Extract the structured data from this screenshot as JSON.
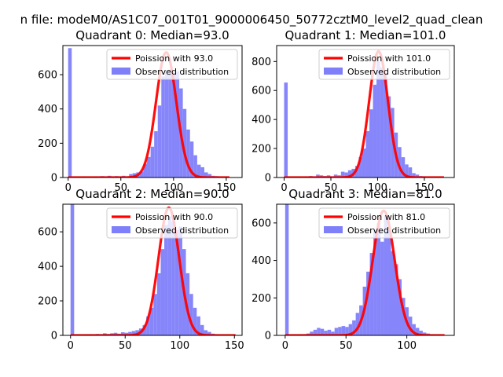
{
  "figure": {
    "suptitle": "n file: modeM0/AS1C07_001T01_9000006450_50772cztM0_level2_quad_clean"
  },
  "colors": {
    "poisson": "#ff0000",
    "histogram": "#7f7ffa",
    "axes": "#000000",
    "background": "#ffffff"
  },
  "chart_data": [
    {
      "type": "bar",
      "title": "Quadrant 0: Median=93.0",
      "median": 93.0,
      "xlim": [
        -5,
        165
      ],
      "ylim": [
        0,
        770
      ],
      "xticks": [
        0,
        50,
        100,
        150
      ],
      "yticks": [
        0,
        200,
        400,
        600
      ],
      "legend": {
        "location": "top-right",
        "line_label": "Poission with 93.0",
        "bar_label": "Observed distribution"
      },
      "hist": {
        "bin_width": 3.4,
        "x": [
          0,
          3.4,
          6.8,
          10.2,
          13.6,
          17,
          20.4,
          23.8,
          27.2,
          30.6,
          34,
          37.4,
          40.8,
          44.2,
          47.6,
          51,
          54.4,
          57.8,
          61.2,
          64.6,
          68,
          71.4,
          74.8,
          78.2,
          81.6,
          85,
          88.4,
          91.8,
          95.2,
          98.6,
          102,
          105.4,
          108.8,
          112.2,
          115.6,
          119,
          122.4,
          125.8,
          129.2,
          132.6,
          136,
          139.4,
          142.8,
          146.2,
          149.6,
          153
        ],
        "y": [
          755,
          0,
          0,
          0,
          5,
          0,
          0,
          5,
          0,
          8,
          0,
          10,
          5,
          8,
          0,
          10,
          5,
          20,
          25,
          30,
          35,
          80,
          120,
          180,
          270,
          420,
          590,
          620,
          630,
          600,
          620,
          520,
          400,
          280,
          210,
          130,
          75,
          60,
          30,
          20,
          10,
          8,
          5,
          3,
          2,
          1
        ]
      },
      "poisson": {
        "mean": 93.0,
        "peak": 730,
        "x_range": [
          0,
          153
        ]
      }
    },
    {
      "type": "bar",
      "title": "Quadrant 1: Median=101.0",
      "median": 101.0,
      "xlim": [
        -8,
        182
      ],
      "ylim": [
        0,
        910
      ],
      "xticks": [
        0,
        50,
        100,
        150
      ],
      "yticks": [
        0,
        200,
        400,
        600,
        800
      ],
      "legend": {
        "location": "top-right",
        "line_label": "Poission with 101.0",
        "bar_label": "Observed distribution"
      },
      "hist": {
        "bin_width": 3.8,
        "x": [
          0,
          3.8,
          7.6,
          11.4,
          15.2,
          19,
          22.8,
          26.6,
          30.4,
          34.2,
          38,
          41.8,
          45.6,
          49.4,
          53.2,
          57,
          60.8,
          64.6,
          68.4,
          72.2,
          76,
          79.8,
          83.6,
          87.4,
          91.2,
          95,
          98.8,
          102.6,
          106.4,
          110.2,
          114,
          117.8,
          121.6,
          125.4,
          129.2,
          133,
          136.8,
          140.6,
          144.4,
          148.2,
          152,
          155.8,
          159.6,
          163.4,
          167.2,
          171
        ],
        "y": [
          655,
          0,
          0,
          0,
          5,
          0,
          5,
          10,
          5,
          20,
          15,
          10,
          15,
          8,
          20,
          15,
          40,
          35,
          50,
          60,
          80,
          140,
          200,
          320,
          470,
          640,
          800,
          760,
          720,
          560,
          480,
          310,
          210,
          140,
          90,
          70,
          30,
          20,
          10,
          8,
          5,
          3,
          2,
          1,
          1,
          0
        ]
      },
      "poisson": {
        "mean": 101.0,
        "peak": 870,
        "x_range": [
          0,
          171
        ]
      }
    },
    {
      "type": "bar",
      "title": "Quadrant 2: Median=90.0",
      "median": 90.0,
      "xlim": [
        -7,
        157
      ],
      "ylim": [
        0,
        760
      ],
      "xticks": [
        0,
        50,
        100,
        150
      ],
      "yticks": [
        0,
        200,
        400,
        600
      ],
      "legend": {
        "location": "top-right",
        "line_label": "Poission with 90.0",
        "bar_label": "Observed distribution"
      },
      "hist": {
        "bin_width": 3.3,
        "x": [
          0,
          3.3,
          6.6,
          9.9,
          13.2,
          16.5,
          19.8,
          23.1,
          26.4,
          29.7,
          33,
          36.3,
          39.6,
          42.9,
          46.2,
          49.5,
          52.8,
          56.1,
          59.4,
          62.7,
          66,
          69.3,
          72.6,
          75.9,
          79.2,
          82.5,
          85.8,
          89.1,
          92.4,
          95.7,
          99,
          102.3,
          105.6,
          108.9,
          112.2,
          115.5,
          118.8,
          122.1,
          125.4,
          128.7,
          132,
          135.3,
          138.6,
          141.9,
          145.2,
          148.5
        ],
        "y": [
          760,
          0,
          0,
          0,
          5,
          5,
          3,
          8,
          5,
          12,
          8,
          12,
          15,
          10,
          18,
          15,
          20,
          25,
          30,
          40,
          60,
          110,
          160,
          240,
          360,
          500,
          640,
          690,
          660,
          610,
          630,
          500,
          360,
          240,
          160,
          110,
          60,
          30,
          20,
          10,
          5,
          3,
          2,
          1,
          1,
          0
        ]
      },
      "poisson": {
        "mean": 90.0,
        "peak": 740,
        "x_range": [
          0,
          151
        ]
      }
    },
    {
      "type": "bar",
      "title": "Quadrant 3: Median=81.0",
      "median": 81.0,
      "xlim": [
        -7,
        139
      ],
      "ylim": [
        0,
        700
      ],
      "xticks": [
        0,
        50,
        100
      ],
      "yticks": [
        0,
        200,
        400,
        600
      ],
      "legend": {
        "location": "top-right",
        "line_label": "Poission with 81.0",
        "bar_label": "Observed distribution"
      },
      "hist": {
        "bin_width": 2.9,
        "x": [
          0,
          2.9,
          5.8,
          8.7,
          11.6,
          14.5,
          17.4,
          20.3,
          23.2,
          26.1,
          29,
          31.9,
          34.8,
          37.7,
          40.6,
          43.5,
          46.4,
          49.3,
          52.2,
          55.1,
          58,
          60.9,
          63.8,
          66.7,
          69.6,
          72.5,
          75.4,
          78.3,
          81.2,
          84.1,
          87,
          89.9,
          92.8,
          95.7,
          98.6,
          101.5,
          104.4,
          107.3,
          110.2,
          113.1,
          116,
          118.9,
          121.8,
          124.7,
          127.6,
          130.5
        ],
        "y": [
          700,
          0,
          0,
          0,
          5,
          5,
          10,
          20,
          30,
          40,
          35,
          25,
          30,
          20,
          40,
          45,
          50,
          45,
          60,
          80,
          120,
          160,
          260,
          340,
          440,
          560,
          600,
          500,
          640,
          560,
          450,
          380,
          300,
          200,
          150,
          100,
          60,
          40,
          25,
          15,
          10,
          5,
          3,
          2,
          1,
          1
        ]
      },
      "poisson": {
        "mean": 81.0,
        "peak": 665,
        "x_range": [
          0,
          131
        ]
      }
    }
  ]
}
